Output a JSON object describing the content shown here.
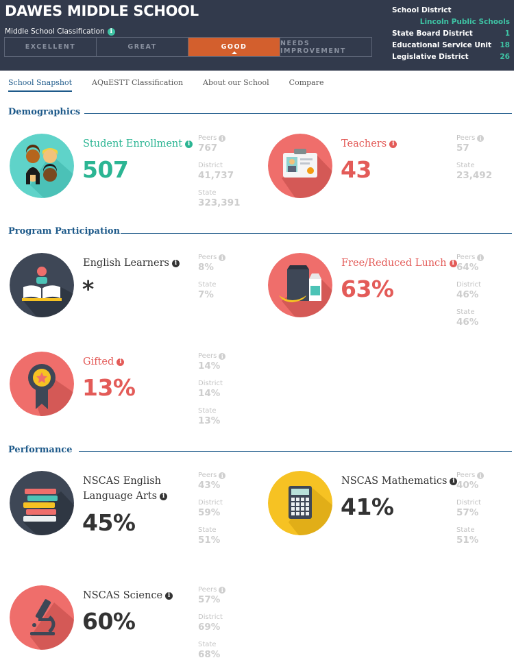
{
  "header": {
    "school_name": "DAWES MIDDLE SCHOOL",
    "classification_label": "Middle School Classification",
    "classifications": [
      {
        "label": "EXCELLENT",
        "active": false
      },
      {
        "label": "GREAT",
        "active": false
      },
      {
        "label": "GOOD",
        "active": true
      },
      {
        "label": "NEEDS IMPROVEMENT",
        "active": false
      }
    ],
    "district": {
      "school_district_label": "School District",
      "school_district_value": "Lincoln Public Schools",
      "rows": [
        {
          "label": "State Board District",
          "value": "1"
        },
        {
          "label": "Educational Service Unit",
          "value": "18"
        },
        {
          "label": "Legislative District",
          "value": "26"
        }
      ]
    }
  },
  "tabs": [
    {
      "label": "School Snapshot",
      "active": true
    },
    {
      "label": "AQuESTT Classification",
      "active": false
    },
    {
      "label": "About our School",
      "active": false
    },
    {
      "label": "Compare",
      "active": false
    }
  ],
  "sections": {
    "demographics": "Demographics",
    "program": "Program Participation",
    "performance": "Performance"
  },
  "metrics": {
    "enrollment": {
      "title": "Student Enrollment",
      "value": "507",
      "comparisons": [
        {
          "label": "Peers",
          "value": "767"
        },
        {
          "label": "District",
          "value": "41,737"
        },
        {
          "label": "State",
          "value": "323,391"
        }
      ]
    },
    "teachers": {
      "title": "Teachers",
      "value": "43",
      "comparisons": [
        {
          "label": "Peers",
          "value": "57"
        },
        {
          "label": "State",
          "value": "23,492"
        }
      ]
    },
    "english_learners": {
      "title": "English Learners",
      "value": "*",
      "comparisons": [
        {
          "label": "Peers",
          "value": "8%"
        },
        {
          "label": "State",
          "value": "7%"
        }
      ]
    },
    "lunch": {
      "title": "Free/Reduced Lunch",
      "value": "63%",
      "comparisons": [
        {
          "label": "Peers",
          "value": "64%"
        },
        {
          "label": "District",
          "value": "46%"
        },
        {
          "label": "State",
          "value": "46%"
        }
      ]
    },
    "gifted": {
      "title": "Gifted",
      "value": "13%",
      "comparisons": [
        {
          "label": "Peers",
          "value": "14%"
        },
        {
          "label": "District",
          "value": "14%"
        },
        {
          "label": "State",
          "value": "13%"
        }
      ]
    },
    "ela": {
      "title_line1": "NSCAS English",
      "title_line2": "Language Arts",
      "value": "45%",
      "comparisons": [
        {
          "label": "Peers",
          "value": "43%"
        },
        {
          "label": "District",
          "value": "59%"
        },
        {
          "label": "State",
          "value": "51%"
        }
      ]
    },
    "math": {
      "title": "NSCAS Mathematics",
      "value": "41%",
      "comparisons": [
        {
          "label": "Peers",
          "value": "40%"
        },
        {
          "label": "District",
          "value": "57%"
        },
        {
          "label": "State",
          "value": "51%"
        }
      ]
    },
    "science": {
      "title": "NSCAS Science",
      "value": "60%",
      "comparisons": [
        {
          "label": "Peers",
          "value": "57%"
        },
        {
          "label": "District",
          "value": "69%"
        },
        {
          "label": "State",
          "value": "68%"
        }
      ]
    }
  },
  "icons": {
    "info": "i",
    "enrollment": "students-icon",
    "teachers": "id-badge-icon",
    "english_learners": "reading-book-icon",
    "lunch": "lunch-bag-icon",
    "gifted": "award-ribbon-icon",
    "ela": "book-stack-icon",
    "math": "calculator-icon",
    "science": "microscope-icon"
  },
  "colors": {
    "header_bg": "#323a4c",
    "active_classification": "#d35f2d",
    "teal": "#2bb593",
    "red": "#e35b58",
    "navy": "#1e5a8a",
    "yellow": "#f6c223",
    "slate": "#3e4756"
  }
}
